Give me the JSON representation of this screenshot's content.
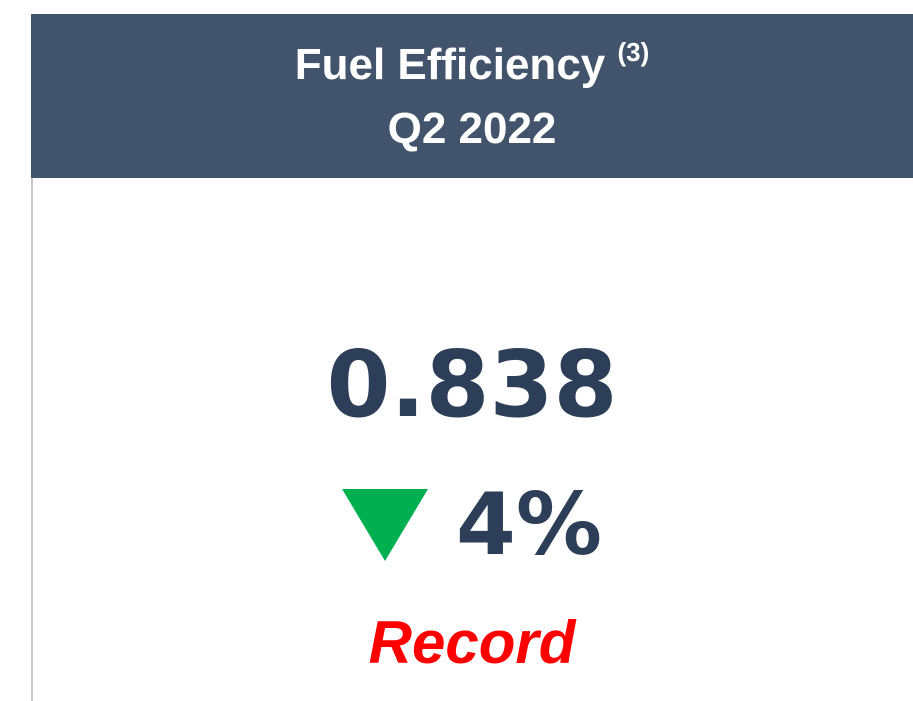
{
  "header": {
    "title": "Fuel Efficiency",
    "footnote": "(3)",
    "period": "Q2 2022"
  },
  "metric": {
    "value": "0.838",
    "change": "4%",
    "status": "Record"
  }
}
